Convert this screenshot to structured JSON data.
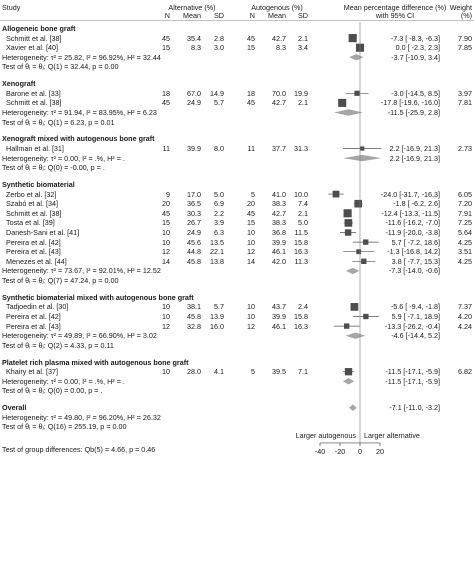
{
  "header": {
    "study": "Study",
    "alt_group": "Alternative (%)",
    "aut_group": "Autogenous (%)",
    "n": "N",
    "mean": "Mean",
    "sd": "SD",
    "effect_line1": "Mean percentage difference (%)",
    "effect_line2": "with 95% CI",
    "weight_line1": "Weight",
    "weight_line2": "(%)"
  },
  "chart_data": {
    "type": "forest",
    "xlim": [
      -40,
      20
    ],
    "ticks": [
      "-40",
      "-20",
      "0",
      "20"
    ],
    "ref_line": 0,
    "xlabel_left": "Larger autogenous",
    "xlabel_right": "Larger alternative",
    "groups": [
      {
        "title": "Allogeneic bone graft",
        "studies": [
          {
            "name": "Schmitt et al. [38]",
            "n1": "45",
            "m1": "35.4",
            "sd1": "2.8",
            "n2": "45",
            "m2": "42.7",
            "sd2": "2.1",
            "est": -7.3,
            "lo": -8.3,
            "hi": -6.3,
            "ci": "-7.3 [ -8.3,  -6.3]",
            "w": "7.90"
          },
          {
            "name": "Xavier et al. [40]",
            "n1": "15",
            "m1": "8.3",
            "sd1": "3.0",
            "n2": "15",
            "m2": "8.3",
            "sd2": "3.4",
            "est": 0.0,
            "lo": -2.3,
            "hi": 2.3,
            "ci": "0.0 [ -2.3,   2.3]",
            "w": "7.85"
          }
        ],
        "pooled": {
          "est": -3.7,
          "lo": -10.9,
          "hi": 3.4,
          "ci": "-3.7 [-10.9,   3.4]"
        },
        "het": "Heterogeneity: τ² = 25.82, I² = 96.92%, H² = 32.44",
        "test": "Test of θᵢ = θⱼ: Q(1) = 32.44, p = 0.00"
      },
      {
        "title": "Xenograft",
        "studies": [
          {
            "name": "Barone et al. [33]",
            "n1": "18",
            "m1": "67.0",
            "sd1": "14.9",
            "n2": "18",
            "m2": "70.0",
            "sd2": "19.9",
            "est": -3.0,
            "lo": -14.5,
            "hi": 8.5,
            "ci": "-3.0 [-14.5,   8.5]",
            "w": "3.97"
          },
          {
            "name": "Schmitt et al. [38]",
            "n1": "45",
            "m1": "24.9",
            "sd1": "5.7",
            "n2": "45",
            "m2": "42.7",
            "sd2": "2.1",
            "est": -17.8,
            "lo": -19.6,
            "hi": -16.0,
            "ci": "-17.8 [-19.6, -16.0]",
            "w": "7.81"
          }
        ],
        "pooled": {
          "est": -11.5,
          "lo": -25.9,
          "hi": 2.8,
          "ci": "-11.5 [-25.9,   2.8]"
        },
        "het": "Heterogeneity: τ² = 91.94, I² = 83.95%, H² = 6.23",
        "test": "Test of θᵢ = θⱼ: Q(1) = 6.23, p = 0.01"
      },
      {
        "title": "Xenograft mixed with autogenous bone graft",
        "studies": [
          {
            "name": "Hallman et al. [31]",
            "n1": "11",
            "m1": "39.9",
            "sd1": "8.0",
            "n2": "11",
            "m2": "37.7",
            "sd2": "31.3",
            "est": 2.2,
            "lo": -16.9,
            "hi": 21.3,
            "ci": "2.2 [-16.9,  21.3]",
            "w": "2.73"
          }
        ],
        "pooled": {
          "est": 2.2,
          "lo": -16.9,
          "hi": 21.3,
          "ci": "2.2 [-16.9,  21.3]"
        },
        "het": "Heterogeneity: τ² = 0.00, I² = .%, H² = .",
        "test": "Test of θᵢ = θⱼ: Q(0) = -0.00, p = ."
      },
      {
        "title": "Synthetic biomaterial",
        "studies": [
          {
            "name": "Zerbo et al. [32]",
            "n1": "9",
            "m1": "17.0",
            "sd1": "5.0",
            "n2": "5",
            "m2": "41.0",
            "sd2": "10.0",
            "est": -24.0,
            "lo": -31.7,
            "hi": -16.3,
            "ci": "-24.0 [-31.7, -16.3]",
            "w": "6.05"
          },
          {
            "name": "Szabó et al. [34]",
            "n1": "20",
            "m1": "36.5",
            "sd1": "6.9",
            "n2": "20",
            "m2": "38.3",
            "sd2": "7.4",
            "est": -1.8,
            "lo": -6.2,
            "hi": 2.6,
            "ci": "-1.8 [ -6.2,   2.6]",
            "w": "7.20"
          },
          {
            "name": "Schmitt et al. [38]",
            "n1": "45",
            "m1": "30.3",
            "sd1": "2.2",
            "n2": "45",
            "m2": "42.7",
            "sd2": "2.1",
            "est": -12.4,
            "lo": -13.3,
            "hi": -11.5,
            "ci": "-12.4 [-13.3, -11.5]",
            "w": "7.91"
          },
          {
            "name": "Tosta et al. [39]",
            "n1": "15",
            "m1": "26.7",
            "sd1": "3.9",
            "n2": "15",
            "m2": "38.3",
            "sd2": "5.0",
            "est": -11.6,
            "lo": -16.2,
            "hi": -7.0,
            "ci": "-11.6 [-16.2,  -7.0]",
            "w": "7.25"
          },
          {
            "name": "Danesh-Sani et al. [41]",
            "n1": "10",
            "m1": "24.9",
            "sd1": "6.3",
            "n2": "10",
            "m2": "36.8",
            "sd2": "11.5",
            "est": -11.9,
            "lo": -20.0,
            "hi": -3.8,
            "ci": "-11.9 [-20.0,  -3.8]",
            "w": "5.64"
          },
          {
            "name": "Pereira et al. [42]",
            "n1": "10",
            "m1": "45.6",
            "sd1": "13.5",
            "n2": "10",
            "m2": "39.9",
            "sd2": "15.8",
            "est": 5.7,
            "lo": -7.2,
            "hi": 18.6,
            "ci": "5.7 [ -7.2,  18.6]",
            "w": "4.25"
          },
          {
            "name": "Pereira et al. [43]",
            "n1": "12",
            "m1": "44.8",
            "sd1": "22.1",
            "n2": "12",
            "m2": "46.1",
            "sd2": "16.3",
            "est": -1.3,
            "lo": -16.8,
            "hi": 14.2,
            "ci": "-1.3 [-16.8,  14.2]",
            "w": "3.51"
          },
          {
            "name": "Menezes et al. [44]",
            "n1": "14",
            "m1": "45.8",
            "sd1": "13.8",
            "n2": "14",
            "m2": "42.0",
            "sd2": "11.3",
            "est": 3.8,
            "lo": -7.7,
            "hi": 15.3,
            "ci": "3.8 [ -7.7,  15.3]",
            "w": "4.25"
          }
        ],
        "pooled": {
          "est": -7.3,
          "lo": -14.0,
          "hi": -0.6,
          "ci": "-7.3 [-14.0,  -0.6]"
        },
        "het": "Heterogeneity: τ² = 73.67, I² = 92.01%, H² = 12.52",
        "test": "Test of θᵢ = θⱼ: Q(7) = 47.24, p = 0.00"
      },
      {
        "title": "Synthetic biomaterial mixed with autogenous bone graft",
        "studies": [
          {
            "name": "Tadjoedin et al. [30]",
            "n1": "10",
            "m1": "38.1",
            "sd1": "5.7",
            "n2": "10",
            "m2": "43.7",
            "sd2": "2.4",
            "est": -5.6,
            "lo": -9.4,
            "hi": -1.8,
            "ci": "-5.6 [ -9.4,  -1.8]",
            "w": "7.37"
          },
          {
            "name": "Pereira et al. [42]",
            "n1": "10",
            "m1": "45.8",
            "sd1": "13.9",
            "n2": "10",
            "m2": "39.9",
            "sd2": "15.8",
            "est": 5.9,
            "lo": -7.1,
            "hi": 18.9,
            "ci": "5.9 [ -7.1,  18.9]",
            "w": "4.20"
          },
          {
            "name": "Pereira et al. [43]",
            "n1": "12",
            "m1": "32.8",
            "sd1": "16.0",
            "n2": "12",
            "m2": "46.1",
            "sd2": "16.3",
            "est": -13.3,
            "lo": -26.2,
            "hi": -0.4,
            "ci": "-13.3 [-26.2,  -0.4]",
            "w": "4.24"
          }
        ],
        "pooled": {
          "est": -4.6,
          "lo": -14.4,
          "hi": 5.2,
          "ci": "-4.6 [-14.4,   5.2]"
        },
        "het": "Heterogeneity: τ² = 49.89, I² = 66.90%, H² = 3.02",
        "test": "Test of θᵢ = θⱼ: Q(2) = 4.33, p = 0.11"
      },
      {
        "title": "Platelet rich plasma mixed with autogenous bone graft",
        "studies": [
          {
            "name": "Khairy et al. [37]",
            "n1": "10",
            "m1": "28.0",
            "sd1": "4.1",
            "n2": "5",
            "m2": "39.5",
            "sd2": "7.1",
            "est": -11.5,
            "lo": -17.1,
            "hi": -5.9,
            "ci": "-11.5 [-17.1,  -5.9]",
            "w": "6.82"
          }
        ],
        "pooled": {
          "est": -11.5,
          "lo": -17.1,
          "hi": -5.9,
          "ci": "-11.5 [-17.1,  -5.9]"
        },
        "het": "Heterogeneity: τ² = 0.00, I² = .%, H² = .",
        "test": "Test of θᵢ = θⱼ: Q(0) = 0.00, p = ."
      }
    ],
    "overall": {
      "title": "Overall",
      "est": -7.1,
      "lo": -11.0,
      "hi": -3.2,
      "ci": "-7.1 [-11.0,  -3.2]",
      "het": "Heterogeneity: τ² = 49.80, I² = 96.20%, H² = 26.32",
      "test": "Test of θᵢ = θⱼ: Q(16) = 255.19, p = 0.00"
    },
    "group_diff": "Test of group differences: Qb(5) = 4.66, p = 0.46"
  }
}
